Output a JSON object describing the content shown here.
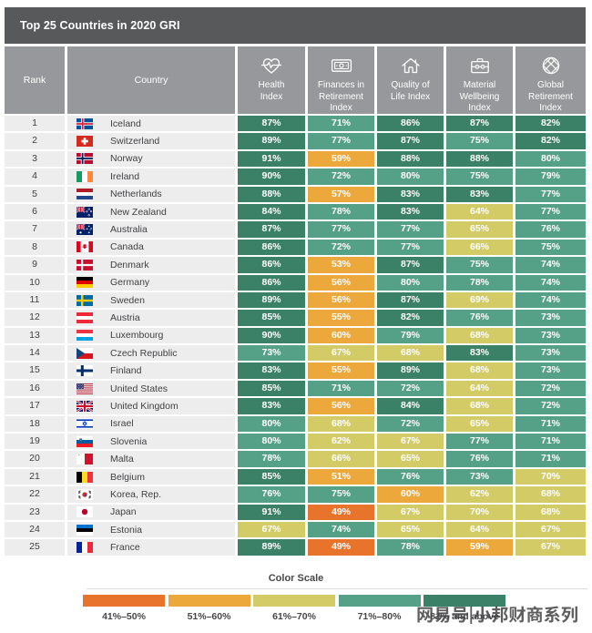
{
  "title_bar": {
    "title": "Top 25 Countries in 2020 GRI"
  },
  "chart_data": {
    "type": "table",
    "title": "Top 25 Countries in 2020 GRI",
    "unit": "%",
    "columns": [
      {
        "id": "rank",
        "label": "Rank"
      },
      {
        "id": "country",
        "label": "Country"
      },
      {
        "id": "health",
        "label": "Health Index",
        "icon": "heart-pulse-icon"
      },
      {
        "id": "finances",
        "label": "Finances in Retirement Index",
        "icon": "banknote-icon"
      },
      {
        "id": "quality",
        "label": "Quality of Life Index",
        "icon": "house-icon"
      },
      {
        "id": "material",
        "label": "Material Wellbeing Index",
        "icon": "briefcase-icon"
      },
      {
        "id": "global",
        "label": "Global Retirement Index",
        "icon": "globe-icon"
      }
    ],
    "rows": [
      {
        "rank": 1,
        "country": "Iceland",
        "flag": "is",
        "values": [
          87,
          71,
          86,
          87,
          82
        ]
      },
      {
        "rank": 2,
        "country": "Switzerland",
        "flag": "ch",
        "values": [
          89,
          77,
          87,
          75,
          82
        ]
      },
      {
        "rank": 3,
        "country": "Norway",
        "flag": "no",
        "values": [
          91,
          59,
          88,
          88,
          80
        ]
      },
      {
        "rank": 4,
        "country": "Ireland",
        "flag": "ie",
        "values": [
          90,
          72,
          80,
          75,
          79
        ]
      },
      {
        "rank": 5,
        "country": "Netherlands",
        "flag": "nl",
        "values": [
          88,
          57,
          83,
          83,
          77
        ]
      },
      {
        "rank": 6,
        "country": "New Zealand",
        "flag": "nz",
        "values": [
          84,
          78,
          83,
          64,
          77
        ]
      },
      {
        "rank": 7,
        "country": "Australia",
        "flag": "au",
        "values": [
          87,
          77,
          77,
          65,
          76
        ]
      },
      {
        "rank": 8,
        "country": "Canada",
        "flag": "ca",
        "values": [
          86,
          72,
          77,
          66,
          75
        ]
      },
      {
        "rank": 9,
        "country": "Denmark",
        "flag": "dk",
        "values": [
          86,
          53,
          87,
          75,
          74
        ]
      },
      {
        "rank": 10,
        "country": "Germany",
        "flag": "de",
        "values": [
          86,
          56,
          80,
          78,
          74
        ]
      },
      {
        "rank": 11,
        "country": "Sweden",
        "flag": "se",
        "values": [
          89,
          56,
          87,
          69,
          74
        ]
      },
      {
        "rank": 12,
        "country": "Austria",
        "flag": "at",
        "values": [
          85,
          55,
          82,
          76,
          73
        ]
      },
      {
        "rank": 13,
        "country": "Luxembourg",
        "flag": "lu",
        "values": [
          90,
          60,
          79,
          68,
          73
        ]
      },
      {
        "rank": 14,
        "country": "Czech Republic",
        "flag": "cz",
        "values": [
          73,
          67,
          68,
          83,
          73
        ]
      },
      {
        "rank": 15,
        "country": "Finland",
        "flag": "fi",
        "values": [
          83,
          55,
          89,
          68,
          73
        ]
      },
      {
        "rank": 16,
        "country": "United States",
        "flag": "us",
        "values": [
          85,
          71,
          72,
          64,
          72
        ]
      },
      {
        "rank": 17,
        "country": "United Kingdom",
        "flag": "gb",
        "values": [
          83,
          56,
          84,
          68,
          72
        ]
      },
      {
        "rank": 18,
        "country": "Israel",
        "flag": "il",
        "values": [
          80,
          68,
          72,
          65,
          71
        ]
      },
      {
        "rank": 19,
        "country": "Slovenia",
        "flag": "si",
        "values": [
          80,
          62,
          67,
          77,
          71
        ]
      },
      {
        "rank": 20,
        "country": "Malta",
        "flag": "mt",
        "values": [
          78,
          66,
          65,
          76,
          71
        ]
      },
      {
        "rank": 21,
        "country": "Belgium",
        "flag": "be",
        "values": [
          85,
          51,
          76,
          73,
          70
        ]
      },
      {
        "rank": 22,
        "country": "Korea, Rep.",
        "flag": "kr",
        "values": [
          76,
          75,
          60,
          62,
          68
        ]
      },
      {
        "rank": 23,
        "country": "Japan",
        "flag": "jp",
        "values": [
          91,
          49,
          67,
          70,
          68
        ]
      },
      {
        "rank": 24,
        "country": "Estonia",
        "flag": "ee",
        "values": [
          67,
          74,
          65,
          64,
          67
        ]
      },
      {
        "rank": 25,
        "country": "France",
        "flag": "fr",
        "values": [
          89,
          49,
          78,
          59,
          67
        ]
      }
    ],
    "color_scale": {
      "title": "Color Scale",
      "buckets": [
        {
          "label": "41%–50%",
          "min": 41,
          "max": 50,
          "color": "#E8742C"
        },
        {
          "label": "51%–60%",
          "min": 51,
          "max": 60,
          "color": "#ECA83A"
        },
        {
          "label": "61%–70%",
          "min": 61,
          "max": 70,
          "color": "#D2CB66"
        },
        {
          "label": "71%–80%",
          "min": 71,
          "max": 80,
          "color": "#55A188"
        },
        {
          "label": "81% and above",
          "min": 81,
          "max": 100,
          "color": "#3A8168"
        }
      ]
    }
  },
  "watermark": {
    "text": "网易号|小邦财商系列"
  },
  "colors": {
    "title_bar_bg": "#58595B",
    "header_bg": "#97989B",
    "row_bg": "#EDEDEE",
    "text_dark": "#414042"
  }
}
